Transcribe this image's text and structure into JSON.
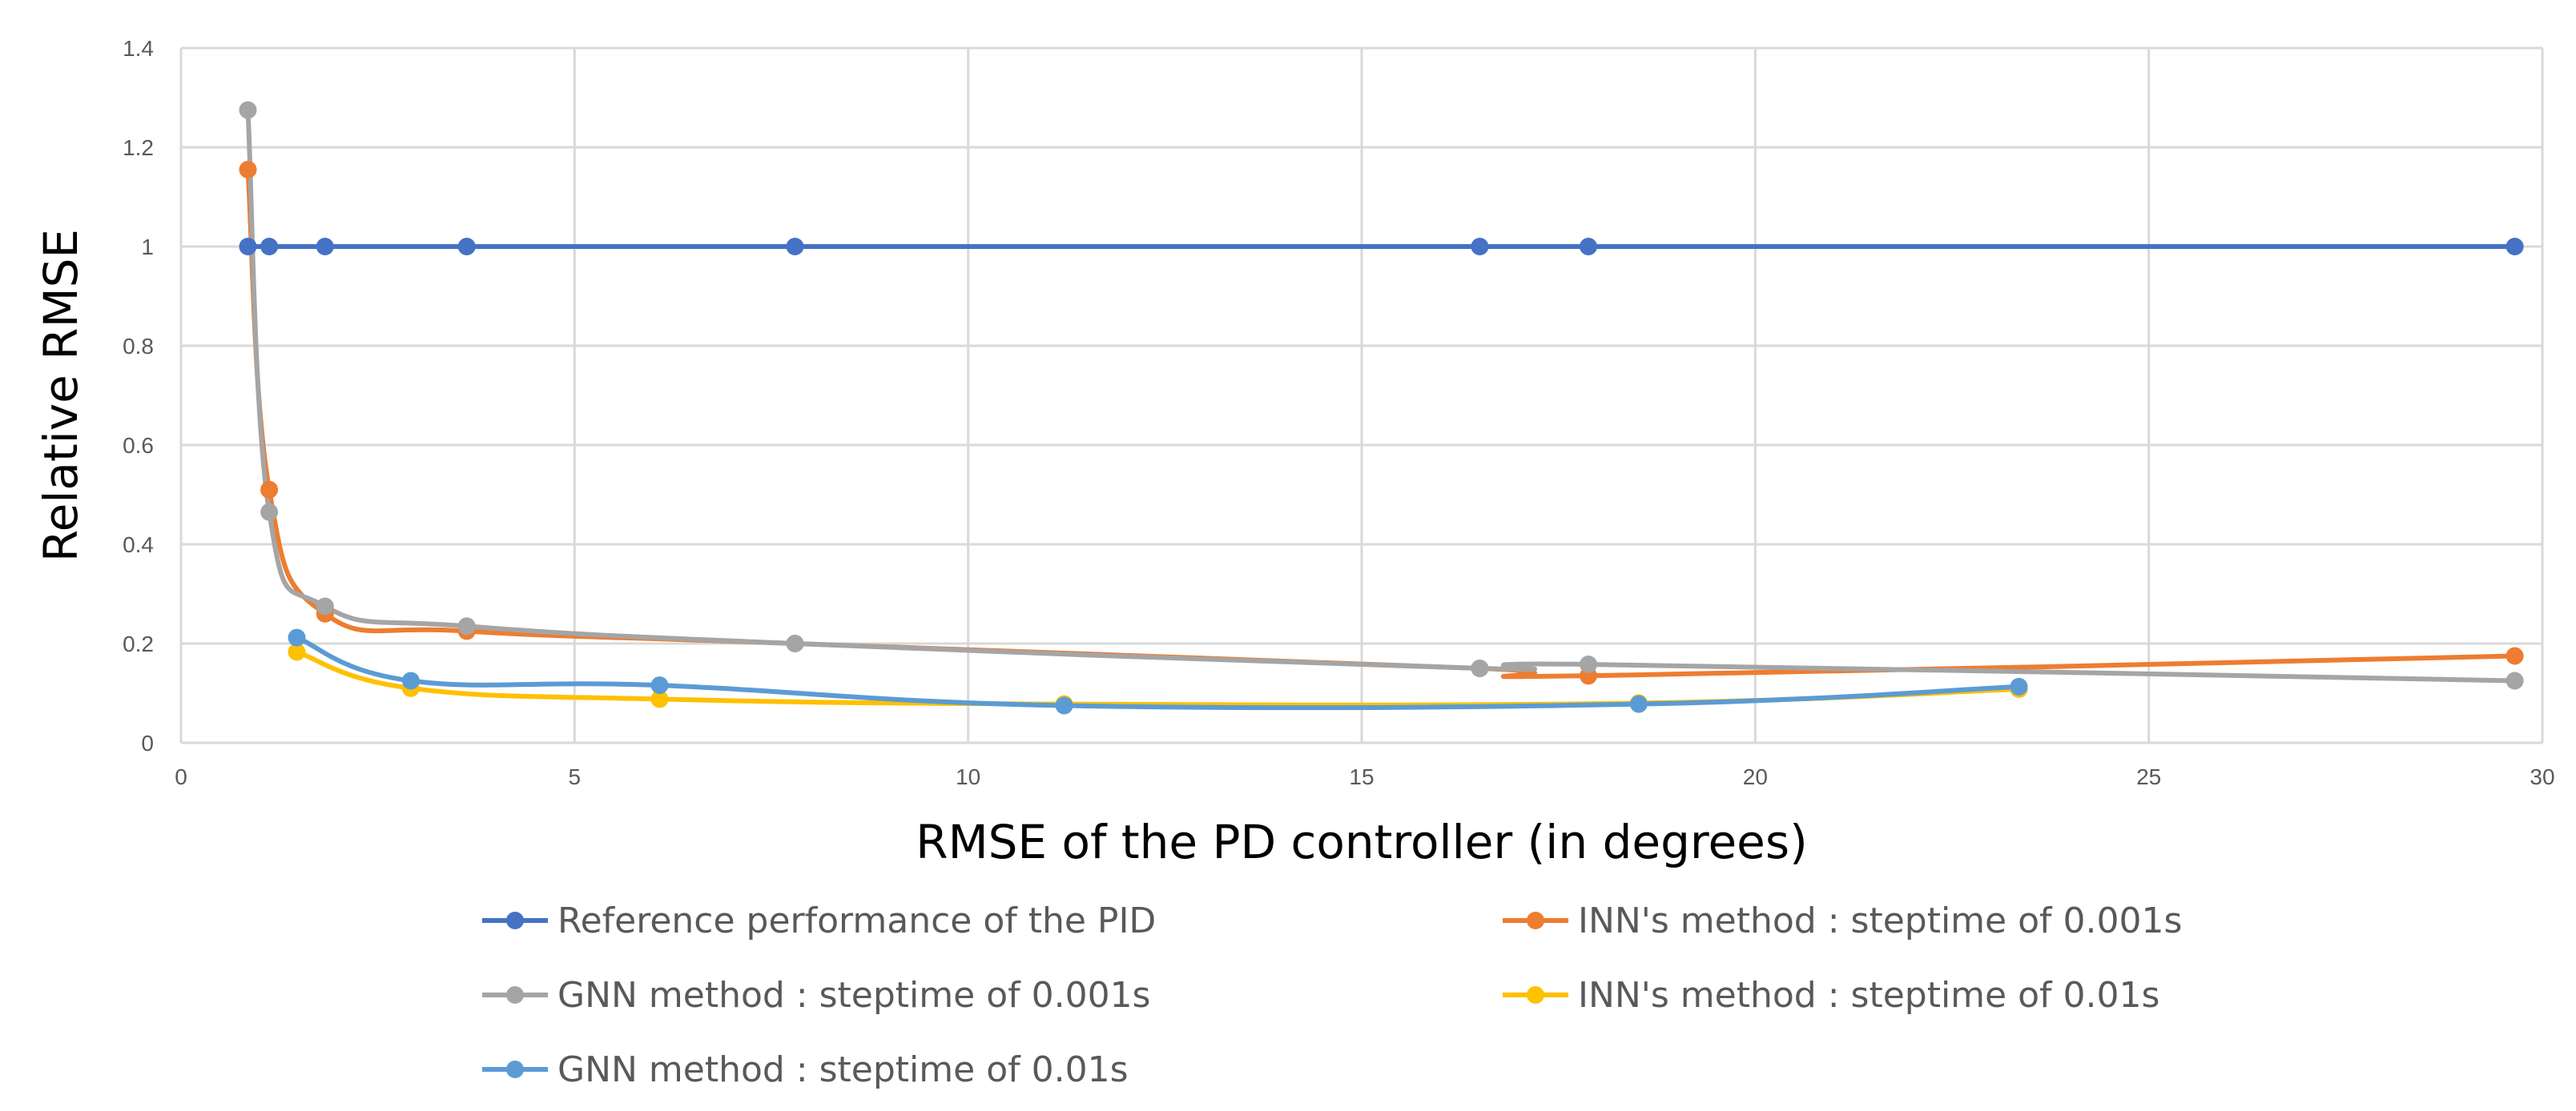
{
  "chart_data": {
    "type": "line",
    "title": "",
    "xlabel": "RMSE of the PD controller (in degrees)",
    "ylabel": "Relative RMSE",
    "xlim": [
      0,
      30
    ],
    "ylim": [
      0,
      1.4
    ],
    "xticks": [
      0,
      5,
      10,
      15,
      20,
      25,
      30
    ],
    "yticks": [
      0,
      0.2,
      0.4,
      0.6,
      0.8,
      1,
      1.2,
      1.4
    ],
    "xtick_labels": [
      "0",
      "5",
      "10",
      "15",
      "20",
      "25",
      "30"
    ],
    "ytick_labels": [
      "0",
      "0.2",
      "0.4",
      "0.6",
      "0.8",
      "1",
      "1.2",
      "1.4"
    ],
    "grid": true,
    "legend_position": "bottom",
    "series": [
      {
        "name": "Reference performance of the PID",
        "color": "#4472C4",
        "points": [
          [
            0.85,
            1
          ],
          [
            1.12,
            1
          ],
          [
            1.83,
            1
          ],
          [
            3.63,
            1
          ],
          [
            7.8,
            1
          ],
          [
            16.5,
            1
          ],
          [
            17.88,
            1
          ],
          [
            29.65,
            1
          ]
        ]
      },
      {
        "name": "INN's method : steptime of 0.001s",
        "color": "#ED7D31",
        "points": [
          [
            0.85,
            1.155
          ],
          [
            1.12,
            0.51
          ],
          [
            1.83,
            0.26
          ],
          [
            3.63,
            0.225
          ],
          [
            7.8,
            0.2
          ],
          [
            16.5,
            0.15
          ],
          [
            17.88,
            0.135
          ],
          [
            29.65,
            0.175
          ]
        ]
      },
      {
        "name": "GNN method : steptime of 0.001s",
        "color": "#A5A5A5",
        "points": [
          [
            0.85,
            1.275
          ],
          [
            1.12,
            0.465
          ],
          [
            1.83,
            0.275
          ],
          [
            3.63,
            0.235
          ],
          [
            7.8,
            0.2
          ],
          [
            16.5,
            0.15
          ],
          [
            17.88,
            0.158
          ],
          [
            29.65,
            0.125
          ]
        ]
      },
      {
        "name": "INN's method : steptime of 0.01s",
        "color": "#FFC000",
        "points": [
          [
            1.47,
            0.183
          ],
          [
            2.92,
            0.11
          ],
          [
            6.08,
            0.088
          ],
          [
            11.22,
            0.078
          ],
          [
            18.52,
            0.08
          ],
          [
            23.35,
            0.108
          ]
        ]
      },
      {
        "name": "GNN method : steptime of 0.01s",
        "color": "#5B9BD5",
        "points": [
          [
            1.47,
            0.212
          ],
          [
            2.92,
            0.125
          ],
          [
            6.08,
            0.116
          ],
          [
            11.22,
            0.075
          ],
          [
            18.52,
            0.078
          ],
          [
            23.35,
            0.113
          ]
        ]
      }
    ]
  }
}
